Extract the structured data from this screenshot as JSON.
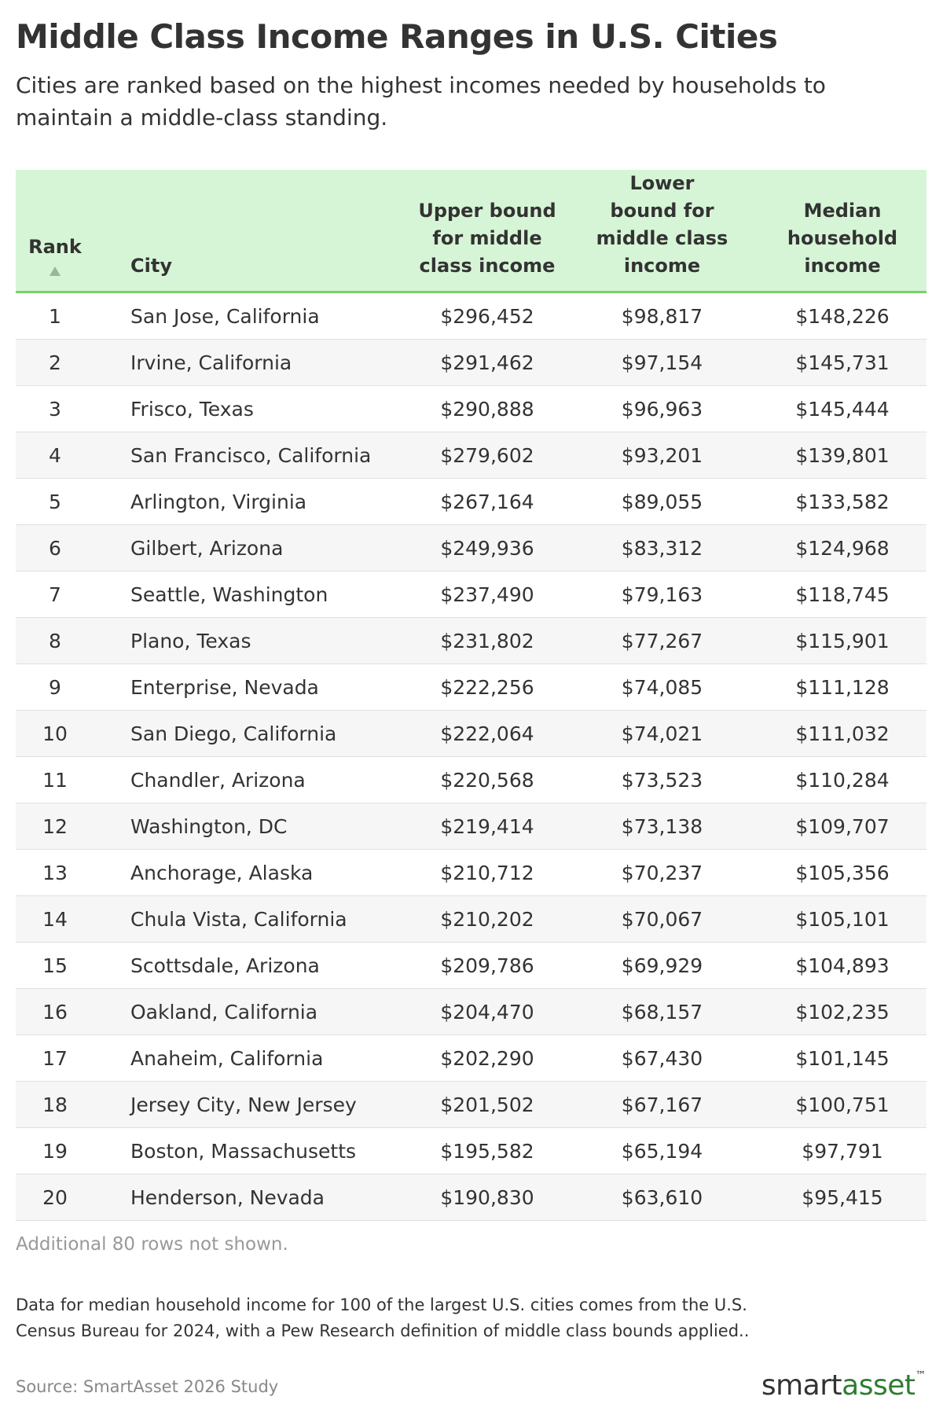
{
  "header": {
    "title": "Middle Class Income Ranges in U.S. Cities",
    "subtitle": "Cities are ranked based on the highest incomes needed by households to maintain a middle-class standing."
  },
  "table": {
    "columns": [
      [
        "Rank"
      ],
      [
        "City"
      ],
      [
        "Upper bound",
        "for middle",
        "class income"
      ],
      [
        "Lower",
        "bound for",
        "middle class",
        "income"
      ],
      [
        "Median",
        "household",
        "income"
      ]
    ],
    "rows": [
      [
        1,
        "San Jose, California",
        "$296,452",
        "$98,817",
        "$148,226"
      ],
      [
        2,
        "Irvine, California",
        "$291,462",
        "$97,154",
        "$145,731"
      ],
      [
        3,
        "Frisco, Texas",
        "$290,888",
        "$96,963",
        "$145,444"
      ],
      [
        4,
        "San Francisco, California",
        "$279,602",
        "$93,201",
        "$139,801"
      ],
      [
        5,
        "Arlington, Virginia",
        "$267,164",
        "$89,055",
        "$133,582"
      ],
      [
        6,
        "Gilbert, Arizona",
        "$249,936",
        "$83,312",
        "$124,968"
      ],
      [
        7,
        "Seattle, Washington",
        "$237,490",
        "$79,163",
        "$118,745"
      ],
      [
        8,
        "Plano, Texas",
        "$231,802",
        "$77,267",
        "$115,901"
      ],
      [
        9,
        "Enterprise, Nevada",
        "$222,256",
        "$74,085",
        "$111,128"
      ],
      [
        10,
        "San Diego, California",
        "$222,064",
        "$74,021",
        "$111,032"
      ],
      [
        11,
        "Chandler, Arizona",
        "$220,568",
        "$73,523",
        "$110,284"
      ],
      [
        12,
        "Washington, DC",
        "$219,414",
        "$73,138",
        "$109,707"
      ],
      [
        13,
        "Anchorage, Alaska",
        "$210,712",
        "$70,237",
        "$105,356"
      ],
      [
        14,
        "Chula Vista, California",
        "$210,202",
        "$70,067",
        "$105,101"
      ],
      [
        15,
        "Scottsdale, Arizona",
        "$209,786",
        "$69,929",
        "$104,893"
      ],
      [
        16,
        "Oakland, California",
        "$204,470",
        "$68,157",
        "$102,235"
      ],
      [
        17,
        "Anaheim, California",
        "$202,290",
        "$67,430",
        "$101,145"
      ],
      [
        18,
        "Jersey City, New Jersey",
        "$201,502",
        "$67,167",
        "$100,751"
      ],
      [
        19,
        "Boston, Massachusetts",
        "$195,582",
        "$65,194",
        "$97,791"
      ],
      [
        20,
        "Henderson, Nevada",
        "$190,830",
        "$63,610",
        "$95,415"
      ]
    ],
    "more": "Additional 80 rows not shown."
  },
  "footer": {
    "notes": "Data for median household income for 100 of the largest U.S. cities comes from the U.S. Census Bureau for 2024, with a Pew Research definition of middle class bounds applied..",
    "source": "Source: SmartAsset 2026 Study",
    "logo": {
      "first": "smart",
      "second": "asset",
      "mark": "™"
    }
  }
}
